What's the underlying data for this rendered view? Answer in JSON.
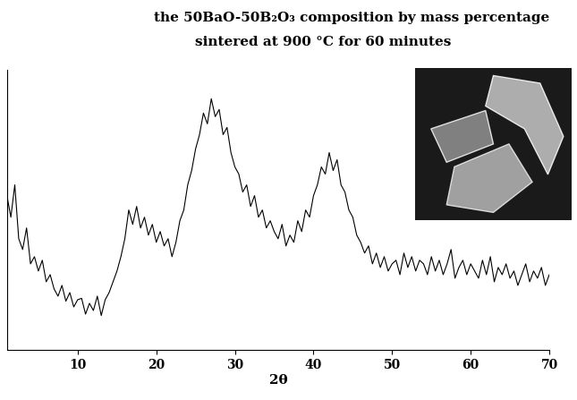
{
  "chart_data": {
    "type": "line",
    "title": "the 50BaO-50B₂O₃ composition by mass percentage",
    "subtitle": "sintered at 900 °C for 60 minutes",
    "x_label": "2θ",
    "x": [
      1,
      1.5,
      2,
      2.5,
      3,
      3.5,
      4,
      4.5,
      5,
      5.5,
      6,
      6.5,
      7,
      7.5,
      8,
      8.5,
      9,
      9.5,
      10,
      10.5,
      11,
      11.5,
      12,
      12.5,
      13,
      13.5,
      14,
      14.5,
      15,
      15.5,
      16,
      16.5,
      17,
      17.5,
      18,
      18.5,
      19,
      19.5,
      20,
      20.5,
      21,
      21.5,
      22,
      22.5,
      23,
      23.5,
      24,
      24.5,
      25,
      25.5,
      26,
      26.5,
      27,
      27.5,
      28,
      28.5,
      29,
      29.5,
      30,
      30.5,
      31,
      31.5,
      32,
      32.5,
      33,
      33.5,
      34,
      34.5,
      35,
      35.5,
      36,
      36.5,
      37,
      37.5,
      38,
      38.5,
      39,
      39.5,
      40,
      40.5,
      41,
      41.5,
      42,
      42.5,
      43,
      43.5,
      44,
      44.5,
      45,
      45.5,
      46,
      46.5,
      47,
      47.5,
      48,
      48.5,
      49,
      49.5,
      50,
      50.5,
      51,
      51.5,
      52,
      52.5,
      53,
      53.5,
      54,
      54.5,
      55,
      55.5,
      56,
      56.5,
      57,
      57.5,
      58,
      58.5,
      59,
      59.5,
      60,
      60.5,
      61,
      61.5,
      62,
      62.5,
      63,
      63.5,
      64,
      64.5,
      65,
      65.5,
      66,
      66.5,
      67,
      67.5,
      68,
      68.5,
      69,
      69.5,
      70
    ],
    "values": [
      235,
      205,
      250,
      175,
      160,
      190,
      140,
      150,
      130,
      145,
      115,
      125,
      105,
      95,
      110,
      88,
      100,
      80,
      90,
      92,
      70,
      85,
      75,
      95,
      68,
      90,
      100,
      115,
      130,
      150,
      175,
      215,
      195,
      220,
      190,
      205,
      180,
      195,
      170,
      185,
      165,
      175,
      150,
      170,
      200,
      215,
      250,
      270,
      300,
      320,
      350,
      335,
      370,
      345,
      355,
      320,
      330,
      295,
      275,
      265,
      240,
      250,
      220,
      235,
      205,
      215,
      190,
      200,
      185,
      175,
      195,
      165,
      180,
      170,
      200,
      185,
      215,
      205,
      235,
      250,
      275,
      265,
      295,
      270,
      285,
      250,
      240,
      215,
      205,
      180,
      170,
      155,
      165,
      140,
      155,
      135,
      150,
      130,
      140,
      145,
      125,
      155,
      135,
      150,
      130,
      145,
      140,
      125,
      150,
      130,
      145,
      125,
      140,
      160,
      120,
      135,
      145,
      125,
      140,
      130,
      120,
      145,
      125,
      150,
      115,
      135,
      125,
      140,
      120,
      130,
      110,
      125,
      140,
      115,
      130,
      120,
      135,
      110,
      125
    ],
    "color": "#000000",
    "xlim": [
      1,
      70
    ],
    "xticks": [
      10,
      20,
      30,
      40,
      50,
      60,
      70
    ],
    "ylim": [
      20,
      410
    ],
    "yticks": [],
    "tick_labels": "x",
    "grid": false
  }
}
